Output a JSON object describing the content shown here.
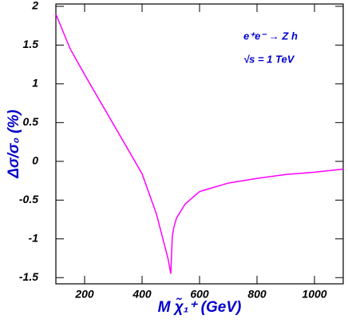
{
  "chart_data": {
    "type": "line",
    "x_label": "M χ̃₁⁺ (GeV)",
    "y_label": "Δσ/σ₀ (%)",
    "annotations": [
      "e⁺e⁻ → Z h",
      "√s = 1 TeV"
    ],
    "x": [
      100,
      150,
      200,
      250,
      300,
      350,
      400,
      450,
      490,
      500,
      505,
      510,
      520,
      550,
      600,
      700,
      800,
      900,
      1000,
      1100
    ],
    "series": [
      {
        "name": "Δσ/σ₀",
        "color": "#ff00ff",
        "values": [
          1.9,
          1.45,
          1.12,
          0.8,
          0.48,
          0.16,
          -0.16,
          -0.68,
          -1.25,
          -1.45,
          -0.98,
          -0.86,
          -0.73,
          -0.55,
          -0.39,
          -0.28,
          -0.22,
          -0.17,
          -0.14,
          -0.1
        ]
      }
    ],
    "xlim": [
      100,
      1100
    ],
    "xticks": [
      200,
      400,
      600,
      800,
      1000
    ],
    "ylim": [
      -1.58,
      2.03
    ],
    "yticks": [
      2,
      1.5,
      1,
      0.5,
      0,
      -0.5,
      -1,
      -1.5
    ]
  }
}
